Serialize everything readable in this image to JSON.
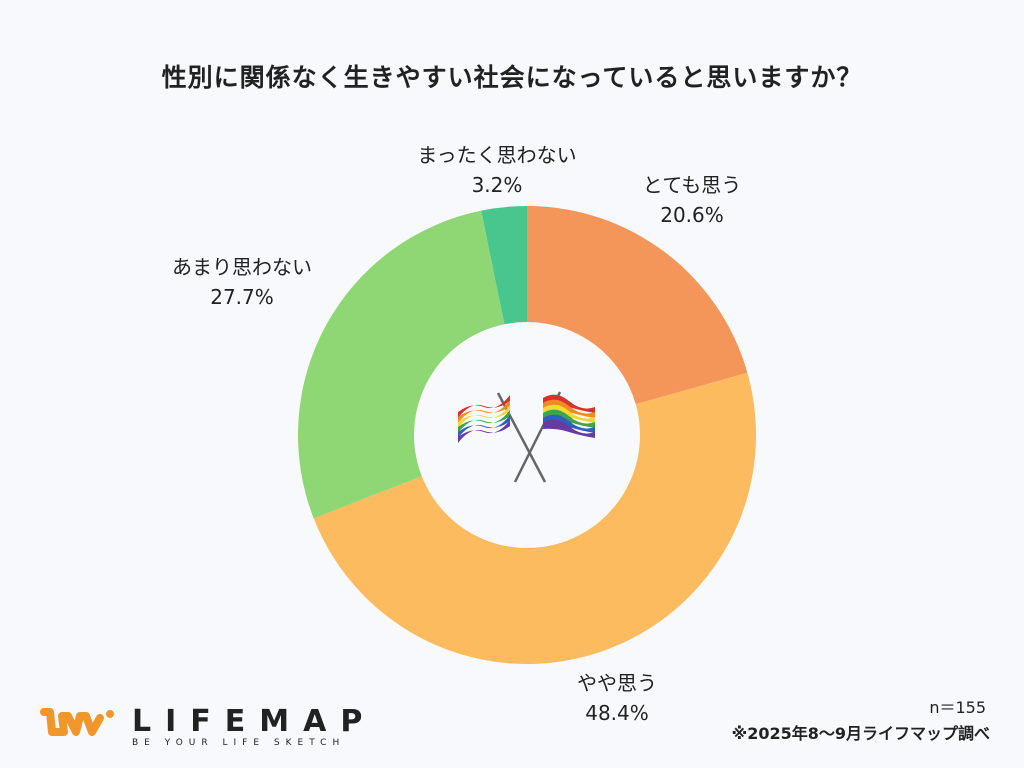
{
  "chart_data": {
    "type": "pie",
    "donut": true,
    "title": "性別に関係なく生きやすい社会になっていると思いますか？",
    "categories": [
      "とても思う",
      "やや思う",
      "あまり思わない",
      "まったく思わない"
    ],
    "values": [
      20.6,
      48.4,
      27.7,
      3.2
    ],
    "value_labels": [
      "20.6%",
      "48.4%",
      "27.7%",
      "3.2%"
    ],
    "colors": [
      "#f4965a",
      "#fdbb5f",
      "#8fd674",
      "#48c68d"
    ],
    "start": "top",
    "direction": "clockwise",
    "center_image": "crossed-rainbow-flags"
  },
  "footer": {
    "sample": "n＝155",
    "note": "※2025年8〜9月ライフマップ調べ"
  },
  "logo": {
    "name": "LIFEMAP",
    "tagline": "BE YOUR LIFE SKETCH",
    "color": "#f0962a"
  }
}
